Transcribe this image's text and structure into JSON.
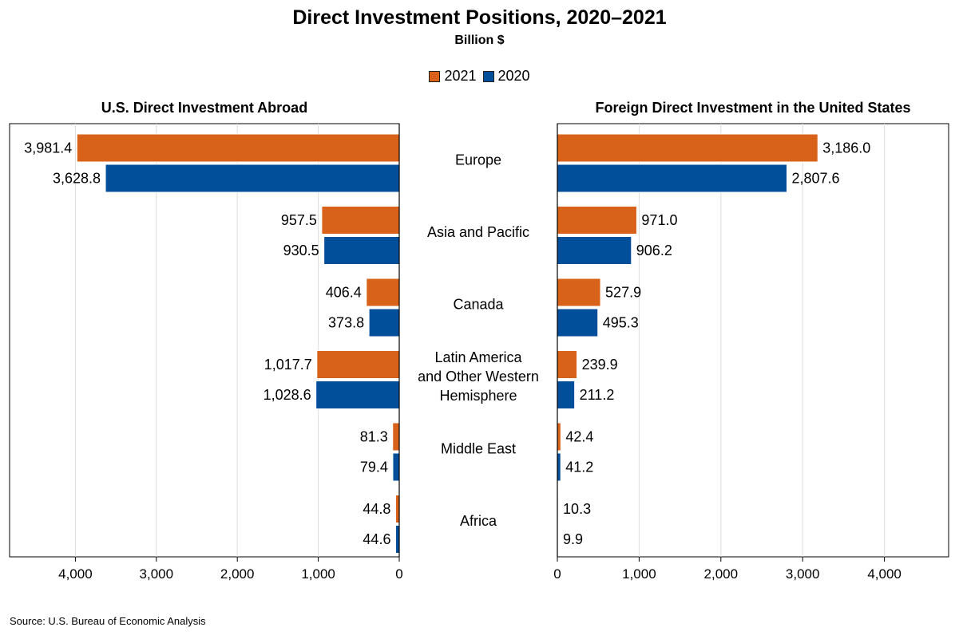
{
  "title": "Direct Investment Positions, 2020–2021",
  "subtitle": "Billion $",
  "legend": [
    {
      "label": "2021",
      "color": "#D9621B"
    },
    {
      "label": "2020",
      "color": "#014E9B"
    }
  ],
  "source": "Source: U.S. Bureau of Economic Analysis",
  "chart_data": [
    {
      "type": "bar",
      "orientation": "horizontal",
      "direction": "reversed",
      "title": "U.S. Direct Investment Abroad",
      "categories": [
        "Europe",
        "Asia and Pacific",
        "Canada",
        "Latin America and Other Western Hemisphere",
        "Middle East",
        "Africa"
      ],
      "series": [
        {
          "name": "2021",
          "values": [
            3981.4,
            957.5,
            406.4,
            1017.7,
            81.3,
            44.8
          ],
          "labels": [
            "3,981.4",
            "957.5",
            "406.4",
            "1,017.7",
            "81.3",
            "44.8"
          ],
          "color": "#D9621B"
        },
        {
          "name": "2020",
          "values": [
            3628.8,
            930.5,
            373.8,
            1028.6,
            79.4,
            44.6
          ],
          "labels": [
            "3,628.8",
            "930.5",
            "373.8",
            "1,028.6",
            "79.4",
            "44.6"
          ],
          "color": "#014E9B"
        }
      ],
      "xlim": [
        0,
        4800
      ],
      "ticks": [
        0,
        1000,
        2000,
        3000,
        4000
      ],
      "tick_labels": [
        "0",
        "1,000",
        "2,000",
        "3,000",
        "4,000"
      ],
      "grid": true
    },
    {
      "type": "bar",
      "orientation": "horizontal",
      "direction": "normal",
      "title": "Foreign Direct Investment in the United States",
      "categories": [
        "Europe",
        "Asia and Pacific",
        "Canada",
        "Latin America and Other Western Hemisphere",
        "Middle East",
        "Africa"
      ],
      "series": [
        {
          "name": "2021",
          "values": [
            3186.0,
            971.0,
            527.9,
            239.9,
            42.4,
            10.3
          ],
          "labels": [
            "3,186.0",
            "971.0",
            "527.9",
            "239.9",
            "42.4",
            "10.3"
          ],
          "color": "#D9621B"
        },
        {
          "name": "2020",
          "values": [
            2807.6,
            906.2,
            495.3,
            211.2,
            41.2,
            9.9
          ],
          "labels": [
            "2,807.6",
            "906.2",
            "495.3",
            "211.2",
            "41.2",
            "9.9"
          ],
          "color": "#014E9B"
        }
      ],
      "xlim": [
        0,
        4800
      ],
      "ticks": [
        0,
        1000,
        2000,
        3000,
        4000
      ],
      "tick_labels": [
        "0",
        "1,000",
        "2,000",
        "3,000",
        "4,000"
      ],
      "grid": true
    }
  ],
  "category_labels": [
    [
      "Europe"
    ],
    [
      "Asia and Pacific"
    ],
    [
      "Canada"
    ],
    [
      "Latin America",
      "and Other Western",
      "Hemisphere"
    ],
    [
      "Middle East"
    ],
    [
      "Africa"
    ]
  ]
}
